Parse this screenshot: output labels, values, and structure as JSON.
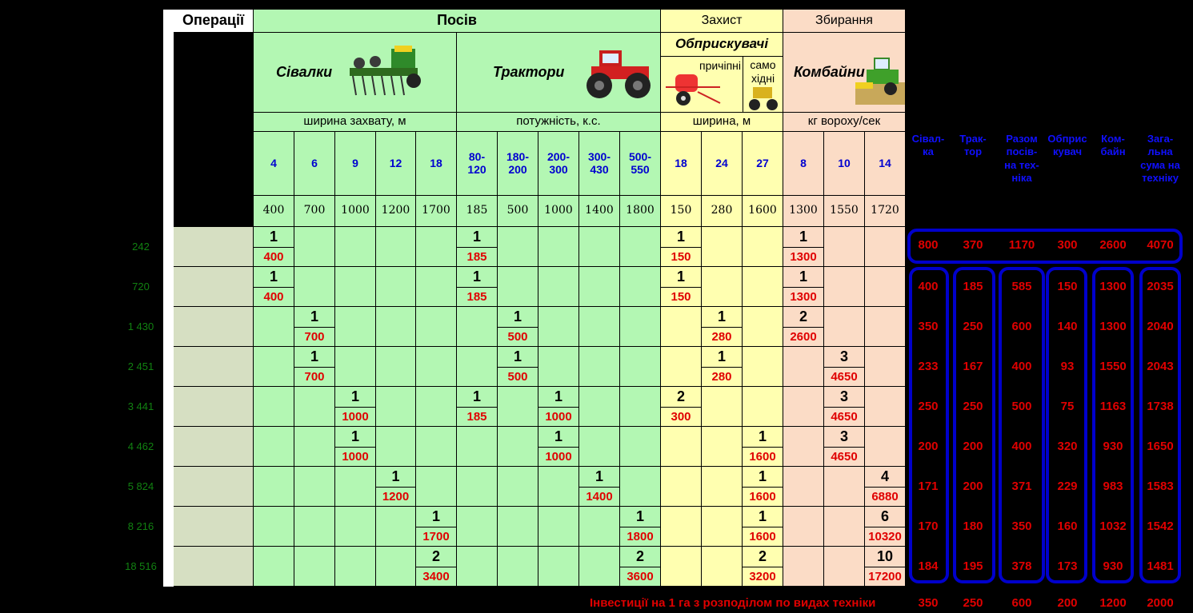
{
  "headers": {
    "operations": "Операції",
    "sowing": "Посів",
    "protection": "Захист",
    "harvesting": "Збирання",
    "seeders": "Сівалки",
    "tractors": "Трактори",
    "sprayers": "Обприскувачі",
    "trailed": "причіпні",
    "selfpropelled": "само хідні",
    "combines": "Комбайни"
  },
  "units": {
    "seeder_width": "ширина захвату, м",
    "tractor_power": "потужність, к.с.",
    "sprayer_width": "ширина, м",
    "combine_capacity": "кг вороху/сек"
  },
  "columns": [
    {
      "size": "4",
      "price": "400",
      "color": "green"
    },
    {
      "size": "6",
      "price": "700",
      "color": "green"
    },
    {
      "size": "9",
      "price": "1000",
      "color": "green"
    },
    {
      "size": "12",
      "price": "1200",
      "color": "green"
    },
    {
      "size": "18",
      "price": "1700",
      "color": "green"
    },
    {
      "size": "80-\n120",
      "price": "185",
      "color": "green"
    },
    {
      "size": "180-\n200",
      "price": "500",
      "color": "green"
    },
    {
      "size": "200-\n300",
      "price": "1000",
      "color": "green"
    },
    {
      "size": "300-\n430",
      "price": "1400",
      "color": "green"
    },
    {
      "size": "500-\n550",
      "price": "1800",
      "color": "green"
    },
    {
      "size": "18",
      "price": "150",
      "color": "yellow"
    },
    {
      "size": "24",
      "price": "280",
      "color": "yellow"
    },
    {
      "size": "27",
      "price": "1600",
      "color": "yellow"
    },
    {
      "size": "8",
      "price": "1300",
      "color": "pink"
    },
    {
      "size": "10",
      "price": "1550",
      "color": "pink"
    },
    {
      "size": "14",
      "price": "1720",
      "color": "pink"
    }
  ],
  "summary_headers": [
    "Сівал-\nка",
    "Трак-\nтор",
    "Разом\nпосів-\nна тех-\nніка",
    "Обприс\nкувач",
    "Ком-\nбайн",
    "Зага-\nльна\nсума на\nтехніку"
  ],
  "rows": [
    {
      "label": "242",
      "entries": [
        [
          0,
          "1",
          "400"
        ],
        [
          5,
          "1",
          "185"
        ],
        [
          10,
          "1",
          "150"
        ],
        [
          13,
          "1",
          "1300"
        ]
      ],
      "summary": [
        "800",
        "370",
        "1170",
        "300",
        "2600",
        "4070"
      ]
    },
    {
      "label": "720",
      "entries": [
        [
          0,
          "1",
          "400"
        ],
        [
          5,
          "1",
          "185"
        ],
        [
          10,
          "1",
          "150"
        ],
        [
          13,
          "1",
          "1300"
        ]
      ],
      "summary": [
        "400",
        "185",
        "585",
        "150",
        "1300",
        "2035"
      ]
    },
    {
      "label": "1 430",
      "entries": [
        [
          1,
          "1",
          "700"
        ],
        [
          6,
          "1",
          "500"
        ],
        [
          11,
          "1",
          "280"
        ],
        [
          13,
          "2",
          "2600"
        ]
      ],
      "summary": [
        "350",
        "250",
        "600",
        "140",
        "1300",
        "2040"
      ]
    },
    {
      "label": "2 451",
      "entries": [
        [
          1,
          "1",
          "700"
        ],
        [
          6,
          "1",
          "500"
        ],
        [
          11,
          "1",
          "280"
        ],
        [
          14,
          "3",
          "4650"
        ]
      ],
      "summary": [
        "233",
        "167",
        "400",
        "93",
        "1550",
        "2043"
      ]
    },
    {
      "label": "3 441",
      "entries": [
        [
          2,
          "1",
          "1000"
        ],
        [
          5,
          "1",
          "185"
        ],
        [
          7,
          "1",
          "1000"
        ],
        [
          10,
          "2",
          "300"
        ],
        [
          14,
          "3",
          "4650"
        ]
      ],
      "summary": [
        "250",
        "250",
        "500",
        "75",
        "1163",
        "1738"
      ]
    },
    {
      "label": "4 462",
      "entries": [
        [
          2,
          "1",
          "1000"
        ],
        [
          7,
          "1",
          "1000"
        ],
        [
          12,
          "1",
          "1600"
        ],
        [
          14,
          "3",
          "4650"
        ]
      ],
      "summary": [
        "200",
        "200",
        "400",
        "320",
        "930",
        "1650"
      ]
    },
    {
      "label": "5 824",
      "entries": [
        [
          3,
          "1",
          "1200"
        ],
        [
          8,
          "1",
          "1400"
        ],
        [
          12,
          "1",
          "1600"
        ],
        [
          15,
          "4",
          "6880"
        ]
      ],
      "summary": [
        "171",
        "200",
        "371",
        "229",
        "983",
        "1583"
      ]
    },
    {
      "label": "8 216",
      "entries": [
        [
          4,
          "1",
          "1700"
        ],
        [
          9,
          "1",
          "1800"
        ],
        [
          12,
          "1",
          "1600"
        ],
        [
          15,
          "6",
          "10320"
        ]
      ],
      "summary": [
        "170",
        "180",
        "350",
        "160",
        "1032",
        "1542"
      ]
    },
    {
      "label": "18 516",
      "entries": [
        [
          4,
          "2",
          "3400"
        ],
        [
          9,
          "2",
          "3600"
        ],
        [
          12,
          "2",
          "3200"
        ],
        [
          15,
          "10",
          "17200"
        ]
      ],
      "summary": [
        "184",
        "195",
        "378",
        "173",
        "930",
        "1481"
      ]
    }
  ],
  "footer": {
    "label": "Інвестиції на 1 га з розподілом по видах техніки",
    "values": [
      "350",
      "250",
      "600",
      "200",
      "1200",
      "2000"
    ]
  },
  "colors": {
    "green": "#b3f7b3",
    "yellow": "#ffffb0",
    "pink": "#fbdcc6",
    "box": "#0000cc",
    "cost": "#e00000",
    "size": "#0000d0"
  }
}
